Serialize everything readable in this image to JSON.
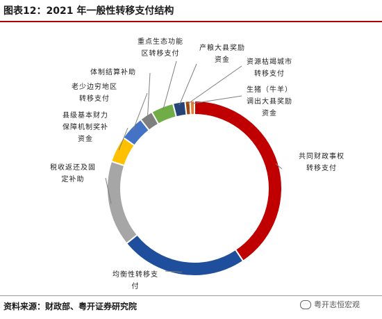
{
  "header": {
    "title": "图表12：2021 年一般性转移支付结构"
  },
  "footer": {
    "source": "资料来源：财政部、粤开证券研究院",
    "watermark": "粤开志恒宏观"
  },
  "chart_data": {
    "type": "pie",
    "style": "donut",
    "title": "图表12：2021 年一般性转移支付结构",
    "start": "12 o'clock",
    "direction": "clockwise",
    "slices": [
      {
        "name": "共同财政事权转移支付",
        "label_lines": [
          "共同财政事权",
          "转移支付"
        ],
        "value": 40.0,
        "color": "#c00000"
      },
      {
        "name": "均衡性转移支付",
        "label_lines": [
          "均衡性转移支",
          "付"
        ],
        "value": 23.2,
        "color": "#1f4e9c"
      },
      {
        "name": "税收返还及固定补助",
        "label_lines": [
          "税收返还及固",
          "定补助"
        ],
        "value": 15.6,
        "color": "#a6a6a6"
      },
      {
        "name": "县级基本财力保障机制奖补资金",
        "label_lines": [
          "县级基本财力",
          "保障机制奖补",
          "资金"
        ],
        "value": 4.8,
        "color": "#ffc000"
      },
      {
        "name": "老少边穷地区转移支付",
        "label_lines": [
          "老少边穷地区",
          "转移支付"
        ],
        "value": 4.5,
        "color": "#4472c4"
      },
      {
        "name": "体制结算补助",
        "label_lines": [
          "体制结算补助"
        ],
        "value": 2.4,
        "color": "#7f7f7f"
      },
      {
        "name": "重点生态功能区转移支付",
        "label_lines": [
          "重点生态功能",
          "区转移支付"
        ],
        "value": 4.1,
        "color": "#70ad47"
      },
      {
        "name": "产粮大县奖励资金",
        "label_lines": [
          "产粮大县奖励",
          "资金"
        ],
        "value": 2.2,
        "color": "#264478"
      },
      {
        "name": "资源枯竭城市转移支付",
        "label_lines": [
          "资源枯竭城市",
          "转移支付"
        ],
        "value": 0.9,
        "color": "#9e480e"
      },
      {
        "name": "生猪（牛羊）调出大县奖励资金",
        "label_lines": [
          "生猪（牛羊）",
          "调出大县奖励",
          "资金"
        ],
        "value": 0.8,
        "color": "#ed7d31"
      }
    ]
  }
}
